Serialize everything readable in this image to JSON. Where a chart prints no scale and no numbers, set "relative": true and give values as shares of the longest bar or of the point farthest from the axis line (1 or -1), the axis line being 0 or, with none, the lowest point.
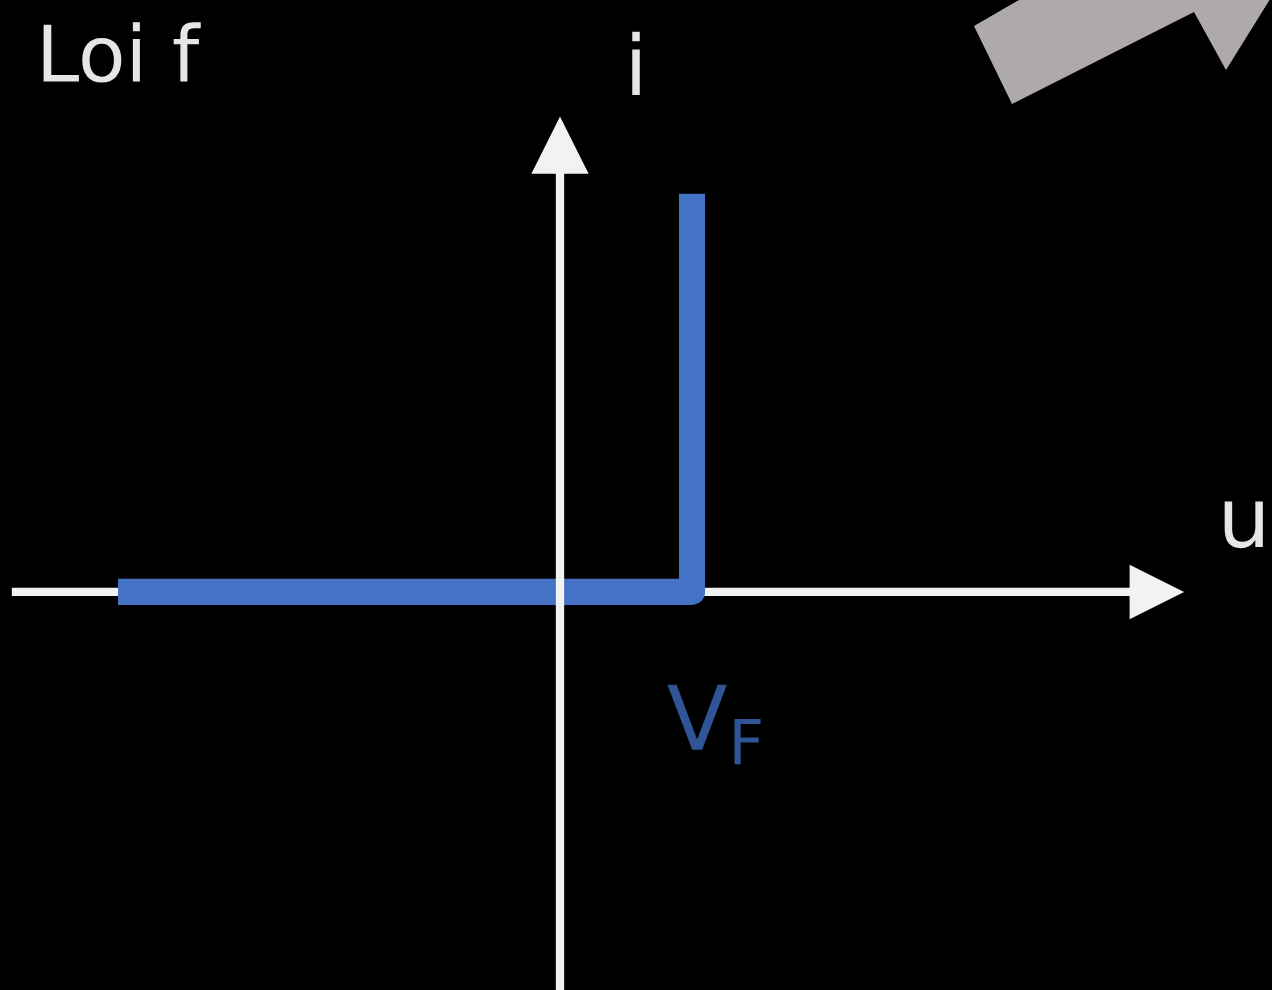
{
  "chart_data": {
    "type": "step",
    "title": "Loi f",
    "xlabel": "u",
    "ylabel": "i",
    "relative": true,
    "categories": [
      null,
      null
    ],
    "values": [
      0,
      1
    ],
    "color": "#4472c4",
    "annotations": [
      "V$_{F}$"
    ]
  }
}
